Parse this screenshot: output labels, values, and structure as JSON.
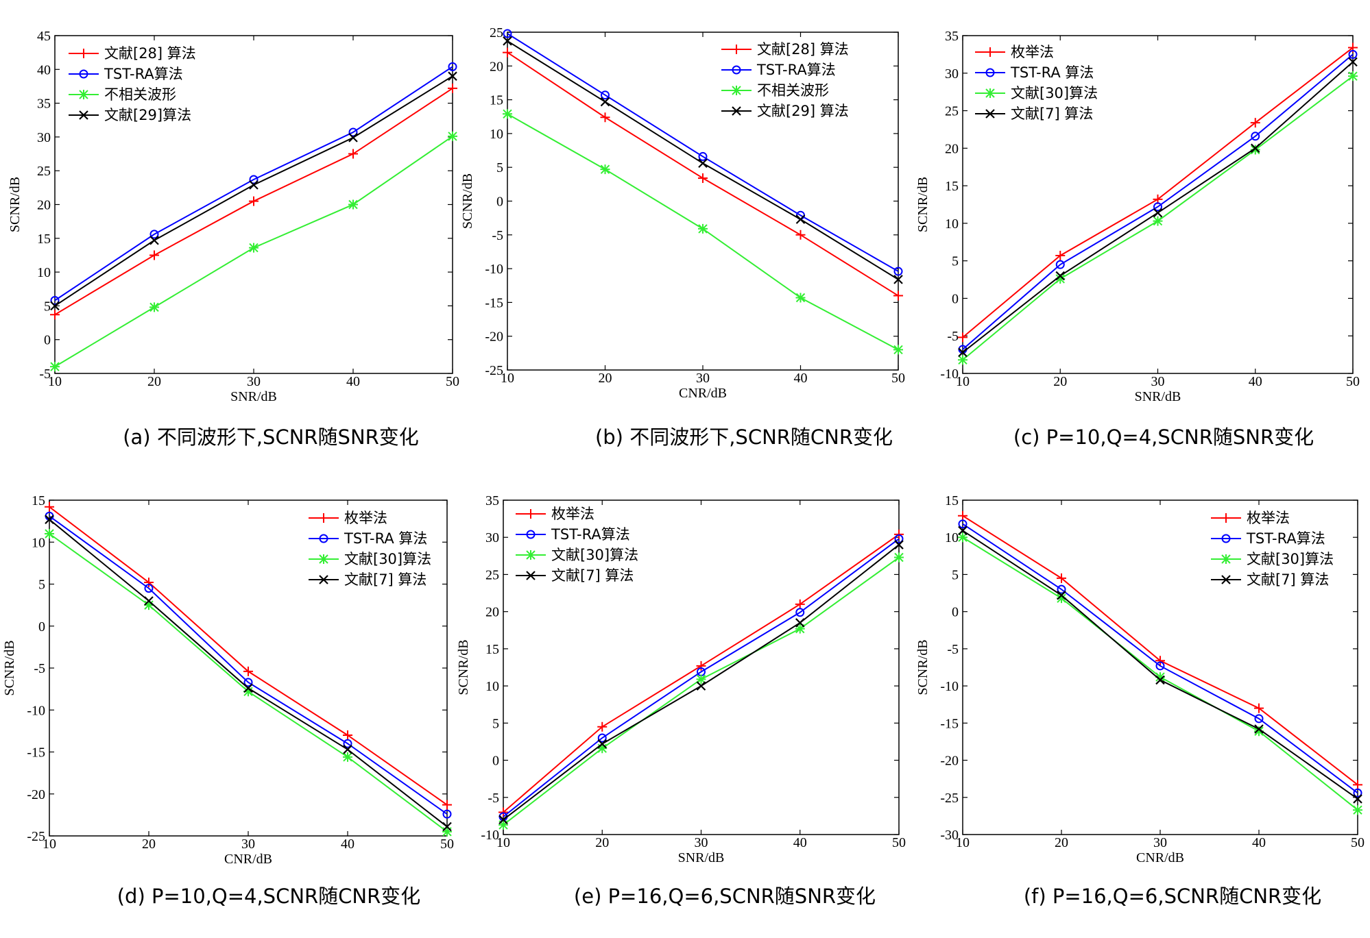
{
  "colors": {
    "red": "#ff0000",
    "blue": "#0000ff",
    "green": "#33ee33",
    "black": "#000000"
  },
  "chart_data": [
    {
      "type": "line",
      "caption": "(a) 不同波形下,SCNR随SNR变化",
      "xlabel": "SNR/dB",
      "ylabel": "SCNR/dB",
      "x": [
        10,
        20,
        30,
        40,
        50
      ],
      "xlim": [
        10,
        50
      ],
      "ylim": [
        -5,
        45
      ],
      "xticks": [
        10,
        20,
        30,
        40,
        50
      ],
      "yticks": [
        -5,
        0,
        5,
        10,
        15,
        20,
        25,
        30,
        35,
        40,
        45
      ],
      "legend_position": "top-left",
      "series": [
        {
          "name": "文献[28] 算法",
          "color": "red",
          "marker": "plus",
          "values": [
            3.7,
            12.5,
            20.5,
            27.5,
            37.2
          ]
        },
        {
          "name": "TST-RA算法",
          "color": "blue",
          "marker": "circle",
          "values": [
            5.8,
            15.6,
            23.7,
            30.7,
            40.4
          ]
        },
        {
          "name": "不相关波形",
          "color": "green",
          "marker": "star",
          "values": [
            -4.0,
            4.8,
            13.6,
            20.0,
            30.1
          ]
        },
        {
          "name": "文献[29]算法",
          "color": "black",
          "marker": "cross",
          "values": [
            5.0,
            14.7,
            22.9,
            29.9,
            39.0
          ]
        }
      ]
    },
    {
      "type": "line",
      "caption": "(b) 不同波形下,SCNR随CNR变化",
      "xlabel": "CNR/dB",
      "ylabel": "SCNR/dB",
      "x": [
        10,
        20,
        30,
        40,
        50
      ],
      "xlim": [
        10,
        50
      ],
      "ylim": [
        -25,
        25
      ],
      "xticks": [
        10,
        20,
        30,
        40,
        50
      ],
      "yticks": [
        -25,
        -20,
        -15,
        -10,
        -5,
        0,
        5,
        10,
        15,
        20,
        25
      ],
      "legend_position": "top-right",
      "series": [
        {
          "name": "文献[28] 算法",
          "color": "red",
          "marker": "plus",
          "values": [
            22.0,
            12.4,
            3.4,
            -5.0,
            -14.0
          ]
        },
        {
          "name": "TST-RA算法",
          "color": "blue",
          "marker": "circle",
          "values": [
            24.8,
            15.7,
            6.6,
            -2.1,
            -10.4
          ]
        },
        {
          "name": "不相关波形",
          "color": "green",
          "marker": "star",
          "values": [
            12.9,
            4.7,
            -4.1,
            -14.3,
            -22.0
          ]
        },
        {
          "name": "文献[29] 算法",
          "color": "black",
          "marker": "cross",
          "values": [
            23.7,
            14.7,
            5.6,
            -2.7,
            -11.6
          ]
        }
      ]
    },
    {
      "type": "line",
      "caption": "(c) P=10,Q=4,SCNR随SNR变化",
      "xlabel": "SNR/dB",
      "ylabel": "SCNR/dB",
      "x": [
        10,
        20,
        30,
        40,
        50
      ],
      "xlim": [
        10,
        50
      ],
      "ylim": [
        -10,
        35
      ],
      "xticks": [
        10,
        20,
        30,
        40,
        50
      ],
      "yticks": [
        -10,
        -5,
        0,
        5,
        10,
        15,
        20,
        25,
        30,
        35
      ],
      "legend_position": "top-left",
      "series": [
        {
          "name": "枚举法",
          "color": "red",
          "marker": "plus",
          "values": [
            -5.2,
            5.7,
            13.2,
            23.4,
            33.4
          ]
        },
        {
          "name": "TST-RA 算法",
          "color": "blue",
          "marker": "circle",
          "values": [
            -6.8,
            4.5,
            12.2,
            21.6,
            32.5
          ]
        },
        {
          "name": "文献[30]算法",
          "color": "green",
          "marker": "star",
          "values": [
            -8.2,
            2.6,
            10.3,
            19.8,
            29.6
          ]
        },
        {
          "name": "文献[7] 算法",
          "color": "black",
          "marker": "cross",
          "values": [
            -7.2,
            3.0,
            11.4,
            20.0,
            31.5
          ]
        }
      ]
    },
    {
      "type": "line",
      "caption": "(d) P=10,Q=4,SCNR随CNR变化",
      "xlabel": "CNR/dB",
      "ylabel": "SCNR/dB",
      "x": [
        10,
        20,
        30,
        40,
        50
      ],
      "xlim": [
        10,
        50
      ],
      "ylim": [
        -25,
        15
      ],
      "xticks": [
        10,
        20,
        30,
        40,
        50
      ],
      "yticks": [
        -25,
        -20,
        -15,
        -10,
        -5,
        0,
        5,
        10,
        15
      ],
      "legend_position": "top-right",
      "series": [
        {
          "name": "枚举法",
          "color": "red",
          "marker": "plus",
          "values": [
            14.2,
            5.2,
            -5.4,
            -13.0,
            -21.3
          ]
        },
        {
          "name": "TST-RA 算法",
          "color": "blue",
          "marker": "circle",
          "values": [
            13.1,
            4.5,
            -6.7,
            -14.0,
            -22.4
          ]
        },
        {
          "name": "文献[30]算法",
          "color": "green",
          "marker": "star",
          "values": [
            11.0,
            2.5,
            -7.8,
            -15.6,
            -24.5
          ]
        },
        {
          "name": "文献[7] 算法",
          "color": "black",
          "marker": "cross",
          "values": [
            12.7,
            3.0,
            -7.4,
            -14.7,
            -23.9
          ]
        }
      ]
    },
    {
      "type": "line",
      "caption": "(e) P=16,Q=6,SCNR随SNR变化",
      "xlabel": "SNR/dB",
      "ylabel": "SCNR/dB",
      "x": [
        10,
        20,
        30,
        40,
        50
      ],
      "xlim": [
        10,
        50
      ],
      "ylim": [
        -10,
        35
      ],
      "xticks": [
        10,
        20,
        30,
        40,
        50
      ],
      "yticks": [
        -10,
        -5,
        0,
        5,
        10,
        15,
        20,
        25,
        30,
        35
      ],
      "legend_position": "top-left",
      "series": [
        {
          "name": "枚举法",
          "color": "red",
          "marker": "plus",
          "values": [
            -7.0,
            4.5,
            12.7,
            21.0,
            30.4
          ]
        },
        {
          "name": "TST-RA算法",
          "color": "blue",
          "marker": "circle",
          "values": [
            -7.6,
            3.0,
            11.9,
            19.9,
            29.8
          ]
        },
        {
          "name": "文献[30]算法",
          "color": "green",
          "marker": "star",
          "values": [
            -8.7,
            1.6,
            10.9,
            17.7,
            27.3
          ]
        },
        {
          "name": "文献[7] 算法",
          "color": "black",
          "marker": "cross",
          "values": [
            -8.0,
            2.2,
            10.0,
            18.5,
            29.0
          ]
        }
      ]
    },
    {
      "type": "line",
      "caption": "(f) P=16,Q=6,SCNR随CNR变化",
      "xlabel": "CNR/dB",
      "ylabel": "SCNR/dB",
      "x": [
        10,
        20,
        30,
        40,
        50
      ],
      "xlim": [
        10,
        50
      ],
      "ylim": [
        -30,
        15
      ],
      "xticks": [
        10,
        20,
        30,
        40,
        50
      ],
      "yticks": [
        -30,
        -25,
        -20,
        -15,
        -10,
        -5,
        0,
        5,
        10,
        15
      ],
      "legend_position": "top-right",
      "series": [
        {
          "name": "枚举法",
          "color": "red",
          "marker": "plus",
          "values": [
            12.9,
            4.5,
            -6.6,
            -13.0,
            -23.3
          ]
        },
        {
          "name": "TST-RA算法",
          "color": "blue",
          "marker": "circle",
          "values": [
            11.8,
            3.0,
            -7.3,
            -14.4,
            -24.4
          ]
        },
        {
          "name": "文献[30]算法",
          "color": "green",
          "marker": "star",
          "values": [
            10.0,
            1.8,
            -8.8,
            -16.1,
            -26.7
          ]
        },
        {
          "name": "文献[7] 算法",
          "color": "black",
          "marker": "cross",
          "values": [
            10.9,
            2.2,
            -9.2,
            -15.8,
            -25.2
          ]
        }
      ]
    }
  ]
}
